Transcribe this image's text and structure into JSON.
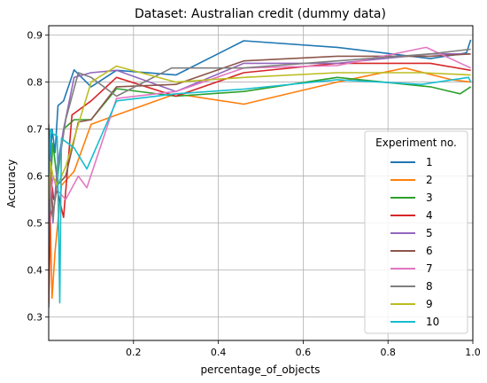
{
  "chart_data": {
    "type": "line",
    "title": "Dataset: Australian credit (dummy data)",
    "xlabel": "percentage_of_objects",
    "ylabel": "Accuracy",
    "xlim": [
      0.0,
      1.0
    ],
    "ylim": [
      0.25,
      0.92
    ],
    "xticks": [
      0.2,
      0.4,
      0.6,
      0.8,
      1.0
    ],
    "xtick_labels": [
      "0.2",
      "0.4",
      "0.6",
      "0.8",
      "1.0"
    ],
    "yticks": [
      0.3,
      0.4,
      0.5,
      0.6,
      0.7,
      0.8,
      0.9
    ],
    "ytick_labels": [
      "0.3",
      "0.4",
      "0.5",
      "0.6",
      "0.7",
      "0.8",
      "0.9"
    ],
    "grid": true,
    "legend": {
      "title": "Experiment no.",
      "placement": "lower-right"
    },
    "series": [
      {
        "name": "1",
        "color": "#1f77b4",
        "x": [
          0.0,
          0.003,
          0.008,
          0.015,
          0.022,
          0.035,
          0.06,
          0.1,
          0.16,
          0.3,
          0.46,
          0.68,
          0.9,
          0.985,
          0.995
        ],
        "y": [
          0.32,
          0.62,
          0.7,
          0.65,
          0.75,
          0.76,
          0.826,
          0.79,
          0.825,
          0.815,
          0.888,
          0.874,
          0.85,
          0.862,
          0.89
        ]
      },
      {
        "name": "2",
        "color": "#ff7f0e",
        "x": [
          0.0,
          0.004,
          0.008,
          0.015,
          0.03,
          0.06,
          0.1,
          0.16,
          0.3,
          0.46,
          0.68,
          0.84,
          0.95,
          0.995
        ],
        "y": [
          0.33,
          0.5,
          0.34,
          0.44,
          0.58,
          0.61,
          0.71,
          0.73,
          0.775,
          0.753,
          0.8,
          0.83,
          0.805,
          0.8
        ]
      },
      {
        "name": "3",
        "color": "#2ca02c",
        "x": [
          0.0,
          0.005,
          0.01,
          0.02,
          0.035,
          0.06,
          0.1,
          0.16,
          0.3,
          0.46,
          0.68,
          0.9,
          0.97,
          0.995
        ],
        "y": [
          0.4,
          0.6,
          0.67,
          0.59,
          0.7,
          0.72,
          0.72,
          0.786,
          0.77,
          0.78,
          0.81,
          0.79,
          0.775,
          0.79
        ]
      },
      {
        "name": "4",
        "color": "#d62728",
        "x": [
          0.0,
          0.005,
          0.012,
          0.02,
          0.035,
          0.055,
          0.1,
          0.16,
          0.3,
          0.46,
          0.68,
          0.9,
          0.995
        ],
        "y": [
          0.33,
          0.6,
          0.55,
          0.57,
          0.512,
          0.73,
          0.76,
          0.81,
          0.77,
          0.82,
          0.84,
          0.84,
          0.825
        ]
      },
      {
        "name": "5",
        "color": "#9467bd",
        "x": [
          0.0,
          0.004,
          0.01,
          0.02,
          0.035,
          0.06,
          0.1,
          0.16,
          0.3,
          0.46,
          0.68,
          0.9,
          0.995
        ],
        "y": [
          0.45,
          0.64,
          0.5,
          0.62,
          0.7,
          0.81,
          0.82,
          0.825,
          0.78,
          0.84,
          0.84,
          0.86,
          0.86
        ]
      },
      {
        "name": "6",
        "color": "#8c564b",
        "x": [
          0.0,
          0.004,
          0.01,
          0.02,
          0.04,
          0.07,
          0.1,
          0.16,
          0.3,
          0.46,
          0.68,
          0.9,
          0.995
        ],
        "y": [
          0.71,
          0.6,
          0.52,
          0.58,
          0.6,
          0.715,
          0.72,
          0.79,
          0.795,
          0.845,
          0.855,
          0.855,
          0.86
        ]
      },
      {
        "name": "7",
        "color": "#e377c2",
        "x": [
          0.0,
          0.004,
          0.01,
          0.02,
          0.04,
          0.07,
          0.09,
          0.16,
          0.3,
          0.46,
          0.68,
          0.89,
          0.995
        ],
        "y": [
          0.68,
          0.55,
          0.6,
          0.57,
          0.55,
          0.6,
          0.575,
          0.765,
          0.78,
          0.83,
          0.835,
          0.874,
          0.83
        ]
      },
      {
        "name": "8",
        "color": "#7f7f7f",
        "x": [
          0.0,
          0.004,
          0.01,
          0.02,
          0.04,
          0.07,
          0.1,
          0.16,
          0.29,
          0.46,
          0.68,
          0.9,
          0.995
        ],
        "y": [
          0.68,
          0.53,
          0.51,
          0.6,
          0.72,
          0.82,
          0.81,
          0.77,
          0.83,
          0.83,
          0.845,
          0.86,
          0.87
        ]
      },
      {
        "name": "9",
        "color": "#bcbd22",
        "x": [
          0.0,
          0.004,
          0.01,
          0.02,
          0.04,
          0.07,
          0.1,
          0.16,
          0.3,
          0.46,
          0.68,
          0.88,
          0.995
        ],
        "y": [
          0.55,
          0.63,
          0.6,
          0.58,
          0.62,
          0.71,
          0.8,
          0.834,
          0.8,
          0.81,
          0.82,
          0.82,
          0.815
        ]
      },
      {
        "name": "10",
        "color": "#17becf",
        "x": [
          0.0,
          0.004,
          0.01,
          0.02,
          0.026,
          0.03,
          0.06,
          0.09,
          0.16,
          0.3,
          0.46,
          0.68,
          0.88,
          0.99,
          0.995
        ],
        "y": [
          0.6,
          0.7,
          0.69,
          0.685,
          0.33,
          0.68,
          0.66,
          0.615,
          0.76,
          0.775,
          0.785,
          0.805,
          0.795,
          0.81,
          0.8
        ]
      }
    ]
  }
}
